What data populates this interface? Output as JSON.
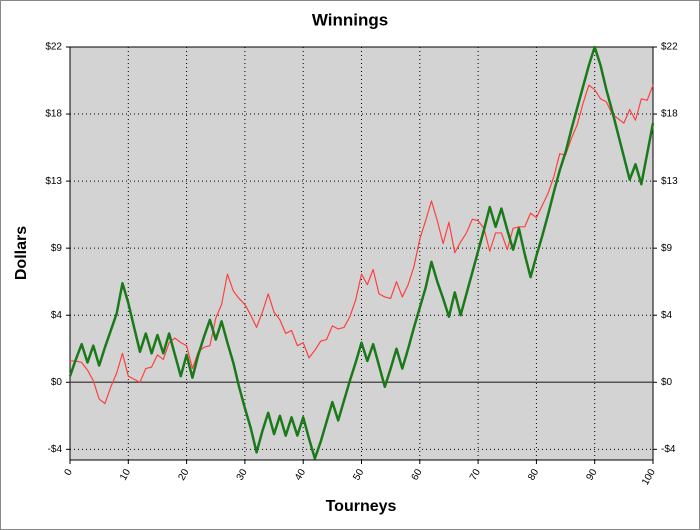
{
  "chart_data": {
    "type": "line",
    "title": "Winnings",
    "x_label": "Tourneys",
    "y_label": "Dollars",
    "x": [
      0,
      1,
      2,
      3,
      4,
      5,
      6,
      7,
      8,
      9,
      10,
      11,
      12,
      13,
      14,
      15,
      16,
      17,
      18,
      19,
      20,
      21,
      22,
      23,
      24,
      25,
      26,
      27,
      28,
      29,
      30,
      31,
      32,
      33,
      34,
      35,
      36,
      37,
      38,
      39,
      40,
      41,
      42,
      43,
      44,
      45,
      46,
      47,
      48,
      49,
      50,
      51,
      52,
      53,
      54,
      55,
      56,
      57,
      58,
      59,
      60,
      61,
      62,
      63,
      64,
      65,
      66,
      67,
      68,
      69,
      70,
      71,
      72,
      73,
      74,
      75,
      76,
      77,
      78,
      79,
      80,
      81,
      82,
      83,
      84,
      85,
      86,
      87,
      88,
      89,
      90,
      91,
      92,
      93,
      94,
      95,
      96,
      97,
      98,
      99,
      100
    ],
    "series": [
      {
        "color": "#ff4040",
        "values": [
          1.4,
          1.4,
          1.3,
          0.8,
          0.1,
          -1.1,
          -1.4,
          -0.3,
          0.6,
          1.9,
          0.4,
          0.2,
          0.0,
          0.9,
          1.0,
          1.8,
          1.5,
          2.6,
          2.9,
          2.6,
          2.4,
          0.9,
          2.0,
          2.3,
          2.4,
          4.2,
          5.1,
          7.1,
          6.0,
          5.5,
          5.1,
          4.4,
          3.6,
          4.6,
          5.8,
          4.6,
          4.1,
          3.2,
          3.4,
          2.4,
          2.6,
          1.6,
          2.1,
          2.7,
          2.8,
          3.7,
          3.5,
          3.6,
          4.3,
          5.4,
          7.1,
          6.4,
          7.4,
          5.8,
          5.6,
          5.5,
          6.6,
          5.6,
          6.4,
          7.6,
          9.4,
          10.6,
          11.9,
          10.6,
          9.1,
          10.5,
          8.5,
          9.2,
          9.8,
          10.7,
          10.6,
          10.1,
          8.6,
          9.8,
          9.8,
          8.7,
          10.1,
          10.2,
          10.2,
          11.1,
          10.8,
          11.6,
          12.4,
          13.5,
          15.0,
          14.9,
          16.0,
          16.9,
          18.3,
          19.5,
          19.2,
          18.6,
          18.4,
          17.6,
          17.3,
          17.0,
          17.9,
          17.2,
          18.6,
          18.5,
          19.5
        ]
      },
      {
        "color": "#1a7a1a",
        "values": [
          0.4,
          1.5,
          2.5,
          1.3,
          2.4,
          1.1,
          2.3,
          3.4,
          4.5,
          6.5,
          5.2,
          3.6,
          2.0,
          3.2,
          1.9,
          3.1,
          1.9,
          3.2,
          1.8,
          0.4,
          1.8,
          0.3,
          1.8,
          3.0,
          4.1,
          2.8,
          4.0,
          2.6,
          1.3,
          -0.3,
          -1.7,
          -3.0,
          -4.6,
          -3.2,
          -2.0,
          -3.4,
          -2.2,
          -3.5,
          -2.3,
          -3.5,
          -2.3,
          -3.7,
          -5.0,
          -3.9,
          -2.6,
          -1.3,
          -2.5,
          -1.2,
          0.1,
          1.3,
          2.6,
          1.4,
          2.5,
          1.1,
          -0.3,
          0.9,
          2.2,
          0.9,
          2.2,
          3.6,
          4.9,
          6.2,
          7.9,
          6.6,
          5.5,
          4.3,
          5.9,
          4.4,
          5.8,
          7.2,
          8.6,
          10.0,
          11.5,
          10.2,
          11.4,
          10.0,
          8.7,
          10.1,
          8.4,
          6.9,
          8.3,
          9.6,
          11.0,
          12.5,
          13.9,
          15.1,
          16.6,
          18.0,
          19.4,
          20.8,
          22.0,
          20.8,
          19.2,
          17.8,
          16.3,
          14.8,
          13.3,
          14.3,
          13.0,
          15.0,
          17.0
        ]
      }
    ],
    "xlim": [
      0,
      100
    ],
    "xticks": [
      0,
      10,
      20,
      30,
      40,
      50,
      60,
      70,
      80,
      90,
      100
    ],
    "ylim": [
      -5.1,
      22
    ],
    "yticks": [
      {
        "value": 22,
        "label": "$22"
      },
      {
        "value": 17.6,
        "label": "$18"
      },
      {
        "value": 13.2,
        "label": "$13"
      },
      {
        "value": 8.8,
        "label": "$9"
      },
      {
        "value": 4.4,
        "label": "$4"
      },
      {
        "value": 0,
        "label": "$0"
      },
      {
        "value": -4.4,
        "label": "-$4"
      }
    ],
    "grid": true
  }
}
